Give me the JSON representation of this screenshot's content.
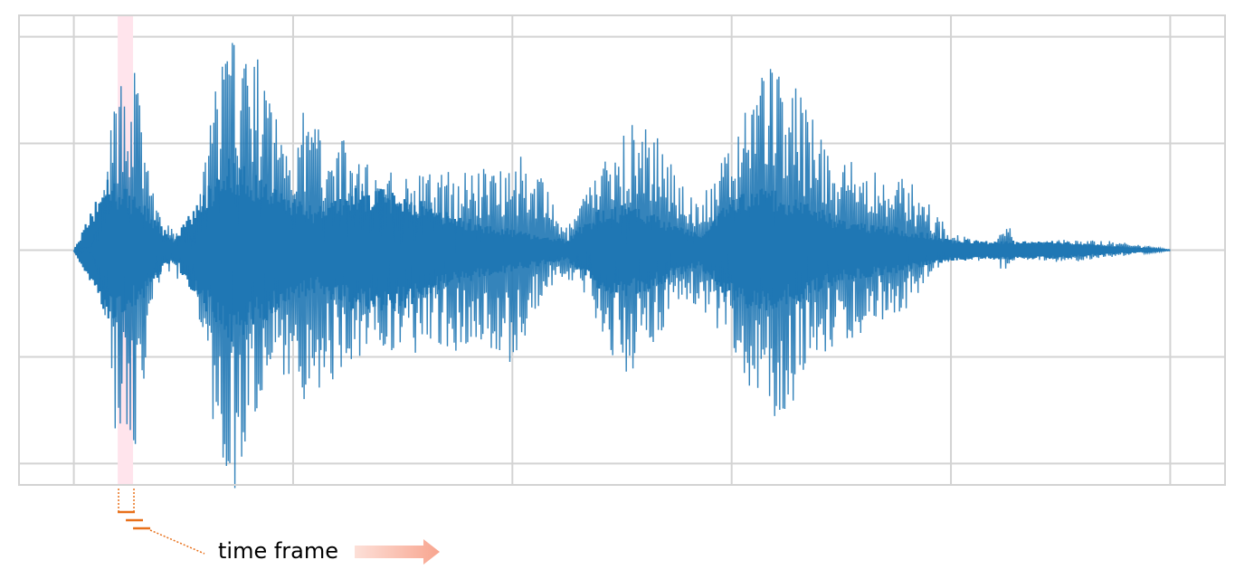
{
  "annotation": {
    "label": "time frame",
    "highlight_color": "#ffe4ec",
    "bracket_color": "#e8701a",
    "arrow_color": "#f8a58f"
  },
  "chart_data": {
    "type": "line",
    "title": "",
    "xlabel": "",
    "ylabel": "",
    "grid": true,
    "tick_labels_shown": false,
    "series_color": "#1f77b4",
    "grid_color": "#d3d3d3",
    "ylim": [
      -1.1,
      1.1
    ],
    "xlim": [
      -0.25,
      5.25
    ],
    "x_gridlines": [
      0,
      1,
      2,
      3,
      4,
      5
    ],
    "y_gridlines": [
      -1,
      -0.5,
      0,
      0.5,
      1
    ],
    "signal_range": [
      0,
      5
    ],
    "highlighted_frame": [
      0.2,
      0.27
    ],
    "envelope": {
      "upper": [
        [
          0,
          0
        ],
        [
          0.08,
          0.02
        ],
        [
          0.14,
          0.3
        ],
        [
          0.19,
          0.75
        ],
        [
          0.23,
          0.88
        ],
        [
          0.28,
          0.9
        ],
        [
          0.33,
          0.48
        ],
        [
          0.4,
          0.12
        ],
        [
          0.55,
          0.1
        ],
        [
          0.68,
          1.0
        ],
        [
          0.8,
          1.0
        ],
        [
          0.95,
          0.6
        ],
        [
          1.05,
          0.66
        ],
        [
          1.15,
          0.6
        ],
        [
          1.3,
          0.45
        ],
        [
          1.45,
          0.38
        ],
        [
          1.55,
          0.35
        ],
        [
          1.7,
          0.38
        ],
        [
          1.85,
          0.38
        ],
        [
          2.0,
          0.48
        ],
        [
          2.1,
          0.4
        ],
        [
          2.25,
          0.1
        ],
        [
          2.4,
          0.42
        ],
        [
          2.55,
          0.62
        ],
        [
          2.7,
          0.5
        ],
        [
          2.85,
          0.22
        ],
        [
          3.0,
          0.5
        ],
        [
          3.1,
          0.88
        ],
        [
          3.2,
          0.92
        ],
        [
          3.3,
          0.75
        ],
        [
          3.45,
          0.48
        ],
        [
          3.6,
          0.4
        ],
        [
          3.75,
          0.35
        ],
        [
          3.85,
          0.3
        ],
        [
          4.0,
          0.08
        ],
        [
          4.2,
          0.03
        ],
        [
          4.25,
          0.15
        ],
        [
          4.3,
          0.03
        ],
        [
          4.5,
          0.05
        ],
        [
          4.8,
          0.04
        ],
        [
          5.0,
          0
        ]
      ],
      "lower": [
        [
          0,
          0
        ],
        [
          0.08,
          -0.02
        ],
        [
          0.14,
          -0.35
        ],
        [
          0.19,
          -0.92
        ],
        [
          0.24,
          -1.15
        ],
        [
          0.3,
          -0.8
        ],
        [
          0.35,
          -0.3
        ],
        [
          0.4,
          -0.12
        ],
        [
          0.55,
          -0.15
        ],
        [
          0.64,
          -0.95
        ],
        [
          0.76,
          -1.2
        ],
        [
          0.9,
          -0.55
        ],
        [
          1.05,
          -0.7
        ],
        [
          1.2,
          -0.6
        ],
        [
          1.35,
          -0.45
        ],
        [
          1.5,
          -0.5
        ],
        [
          1.65,
          -0.5
        ],
        [
          1.85,
          -0.45
        ],
        [
          2.0,
          -0.55
        ],
        [
          2.15,
          -0.2
        ],
        [
          2.3,
          -0.15
        ],
        [
          2.45,
          -0.5
        ],
        [
          2.55,
          -0.6
        ],
        [
          2.7,
          -0.35
        ],
        [
          2.85,
          -0.25
        ],
        [
          3.0,
          -0.5
        ],
        [
          3.12,
          -0.75
        ],
        [
          3.22,
          -0.8
        ],
        [
          3.35,
          -0.6
        ],
        [
          3.5,
          -0.45
        ],
        [
          3.65,
          -0.35
        ],
        [
          3.8,
          -0.3
        ],
        [
          3.9,
          -0.12
        ],
        [
          4.0,
          -0.05
        ],
        [
          4.2,
          -0.05
        ],
        [
          4.25,
          -0.12
        ],
        [
          4.3,
          -0.04
        ],
        [
          4.5,
          -0.06
        ],
        [
          4.8,
          -0.03
        ],
        [
          5.0,
          0
        ]
      ]
    },
    "core": [
      [
        0,
        0
      ],
      [
        0.15,
        0.35
      ],
      [
        0.3,
        0.25
      ],
      [
        0.45,
        0.05
      ],
      [
        0.7,
        0.45
      ],
      [
        0.9,
        0.32
      ],
      [
        1.1,
        0.2
      ],
      [
        1.3,
        0.3
      ],
      [
        1.5,
        0.28
      ],
      [
        1.7,
        0.18
      ],
      [
        1.9,
        0.12
      ],
      [
        2.1,
        0.08
      ],
      [
        2.25,
        0.05
      ],
      [
        2.4,
        0.2
      ],
      [
        2.55,
        0.22
      ],
      [
        2.7,
        0.15
      ],
      [
        2.85,
        0.08
      ],
      [
        3.0,
        0.25
      ],
      [
        3.15,
        0.3
      ],
      [
        3.3,
        0.25
      ],
      [
        3.5,
        0.15
      ],
      [
        3.7,
        0.12
      ],
      [
        3.9,
        0.08
      ],
      [
        4.0,
        0.05
      ],
      [
        4.5,
        0.04
      ],
      [
        5.0,
        0
      ]
    ]
  }
}
